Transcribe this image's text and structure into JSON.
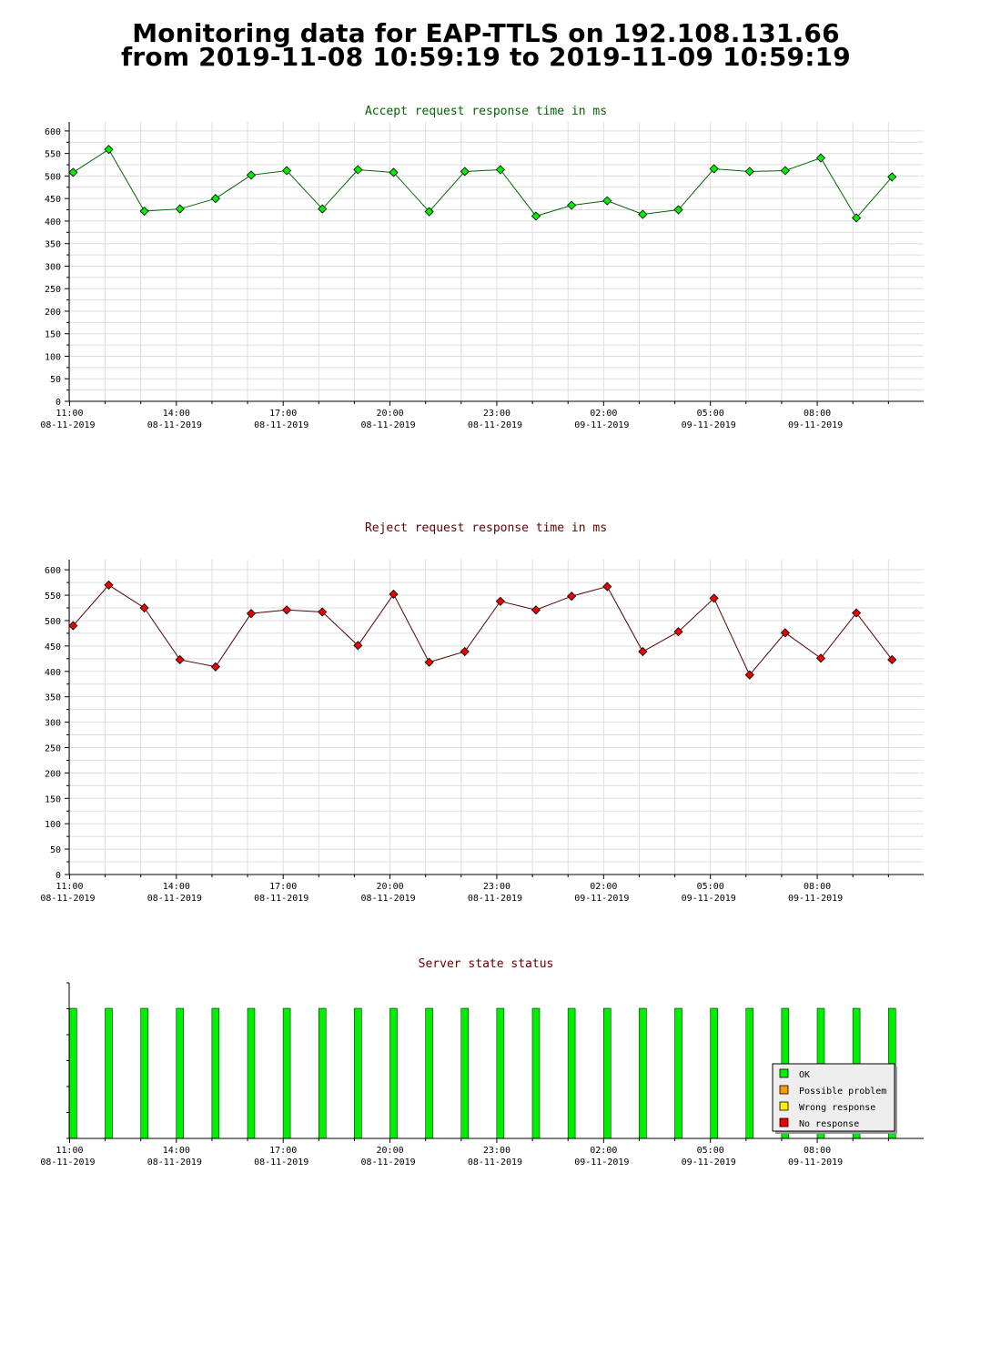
{
  "page": {
    "title_line1": "Monitoring data for EAP-TTLS on 192.108.131.66",
    "title_line2": "from 2019-11-08 10:59:19 to 2019-11-09 10:59:19"
  },
  "colors": {
    "accept_title": "#006600",
    "reject_title": "#660000",
    "status_title": "#660000",
    "accept_line": "#006600",
    "accept_point": "#00ee00",
    "reject_line": "#550000",
    "reject_point": "#ee0000",
    "grid": "#dddddd",
    "ok": "#00ee00",
    "possible": "#ff9900",
    "wrong": "#ffee00",
    "noresp": "#ee0000"
  },
  "x_ticks": [
    {
      "time": "11:00",
      "date": "08-11-2019"
    },
    {
      "time": "14:00",
      "date": "08-11-2019"
    },
    {
      "time": "17:00",
      "date": "08-11-2019"
    },
    {
      "time": "20:00",
      "date": "08-11-2019"
    },
    {
      "time": "23:00",
      "date": "08-11-2019"
    },
    {
      "time": "02:00",
      "date": "09-11-2019"
    },
    {
      "time": "05:00",
      "date": "09-11-2019"
    },
    {
      "time": "08:00",
      "date": "09-11-2019"
    }
  ],
  "chart_data": [
    {
      "type": "line",
      "title": "Accept request response time in ms",
      "ylim": [
        0,
        620
      ],
      "yticks": [
        0,
        50,
        100,
        150,
        200,
        250,
        300,
        350,
        400,
        450,
        500,
        550,
        600
      ],
      "grid": true,
      "x": [
        "2019-11-08 11:06",
        "2019-11-08 12:06",
        "2019-11-08 13:06",
        "2019-11-08 14:06",
        "2019-11-08 15:06",
        "2019-11-08 16:06",
        "2019-11-08 17:06",
        "2019-11-08 18:06",
        "2019-11-08 19:06",
        "2019-11-08 20:06",
        "2019-11-08 21:06",
        "2019-11-08 22:06",
        "2019-11-08 23:06",
        "2019-11-09 00:06",
        "2019-11-09 01:06",
        "2019-11-09 02:06",
        "2019-11-09 03:06",
        "2019-11-09 04:06",
        "2019-11-09 05:06",
        "2019-11-09 06:06",
        "2019-11-09 07:06",
        "2019-11-09 08:06",
        "2019-11-09 09:06",
        "2019-11-09 10:06"
      ],
      "values": [
        508,
        559,
        422,
        427,
        450,
        502,
        512,
        427,
        514,
        508,
        421,
        510,
        514,
        411,
        435,
        445,
        415,
        425,
        516,
        510,
        512,
        540,
        407,
        498
      ]
    },
    {
      "type": "line",
      "title": "Reject request response time in ms",
      "ylim": [
        0,
        620
      ],
      "yticks": [
        0,
        50,
        100,
        150,
        200,
        250,
        300,
        350,
        400,
        450,
        500,
        550,
        600
      ],
      "grid": true,
      "x": [
        "2019-11-08 11:06",
        "2019-11-08 12:06",
        "2019-11-08 13:06",
        "2019-11-08 14:06",
        "2019-11-08 15:06",
        "2019-11-08 16:06",
        "2019-11-08 17:06",
        "2019-11-08 18:06",
        "2019-11-08 19:06",
        "2019-11-08 20:06",
        "2019-11-08 21:06",
        "2019-11-08 22:06",
        "2019-11-08 23:06",
        "2019-11-09 00:06",
        "2019-11-09 01:06",
        "2019-11-09 02:06",
        "2019-11-09 03:06",
        "2019-11-09 04:06",
        "2019-11-09 05:06",
        "2019-11-09 06:06",
        "2019-11-09 07:06",
        "2019-11-09 08:06",
        "2019-11-09 09:06",
        "2019-11-09 10:06"
      ],
      "values": [
        490,
        570,
        525,
        423,
        409,
        514,
        521,
        517,
        451,
        552,
        418,
        439,
        538,
        521,
        548,
        567,
        439,
        478,
        544,
        393,
        476,
        426,
        515,
        423
      ]
    },
    {
      "type": "bar",
      "title": "Server state status",
      "x": [
        "2019-11-08 11:06",
        "2019-11-08 12:06",
        "2019-11-08 13:06",
        "2019-11-08 14:06",
        "2019-11-08 15:06",
        "2019-11-08 16:06",
        "2019-11-08 17:06",
        "2019-11-08 18:06",
        "2019-11-08 19:06",
        "2019-11-08 20:06",
        "2019-11-08 21:06",
        "2019-11-08 22:06",
        "2019-11-08 23:06",
        "2019-11-09 00:06",
        "2019-11-09 01:06",
        "2019-11-09 02:06",
        "2019-11-09 03:06",
        "2019-11-09 04:06",
        "2019-11-09 05:06",
        "2019-11-09 06:06",
        "2019-11-09 07:06",
        "2019-11-09 08:06",
        "2019-11-09 09:06",
        "2019-11-09 10:06"
      ],
      "states": [
        "OK",
        "OK",
        "OK",
        "OK",
        "OK",
        "OK",
        "OK",
        "OK",
        "OK",
        "OK",
        "OK",
        "OK",
        "OK",
        "OK",
        "OK",
        "OK",
        "OK",
        "OK",
        "OK",
        "OK",
        "OK",
        "OK",
        "OK",
        "OK"
      ],
      "legend_position": "bottom-right",
      "legend": [
        {
          "label": "OK",
          "color": "#00ee00"
        },
        {
          "label": "Possible problem",
          "color": "#ff9900"
        },
        {
          "label": "Wrong response",
          "color": "#ffee00"
        },
        {
          "label": "No response",
          "color": "#ee0000"
        }
      ]
    }
  ]
}
